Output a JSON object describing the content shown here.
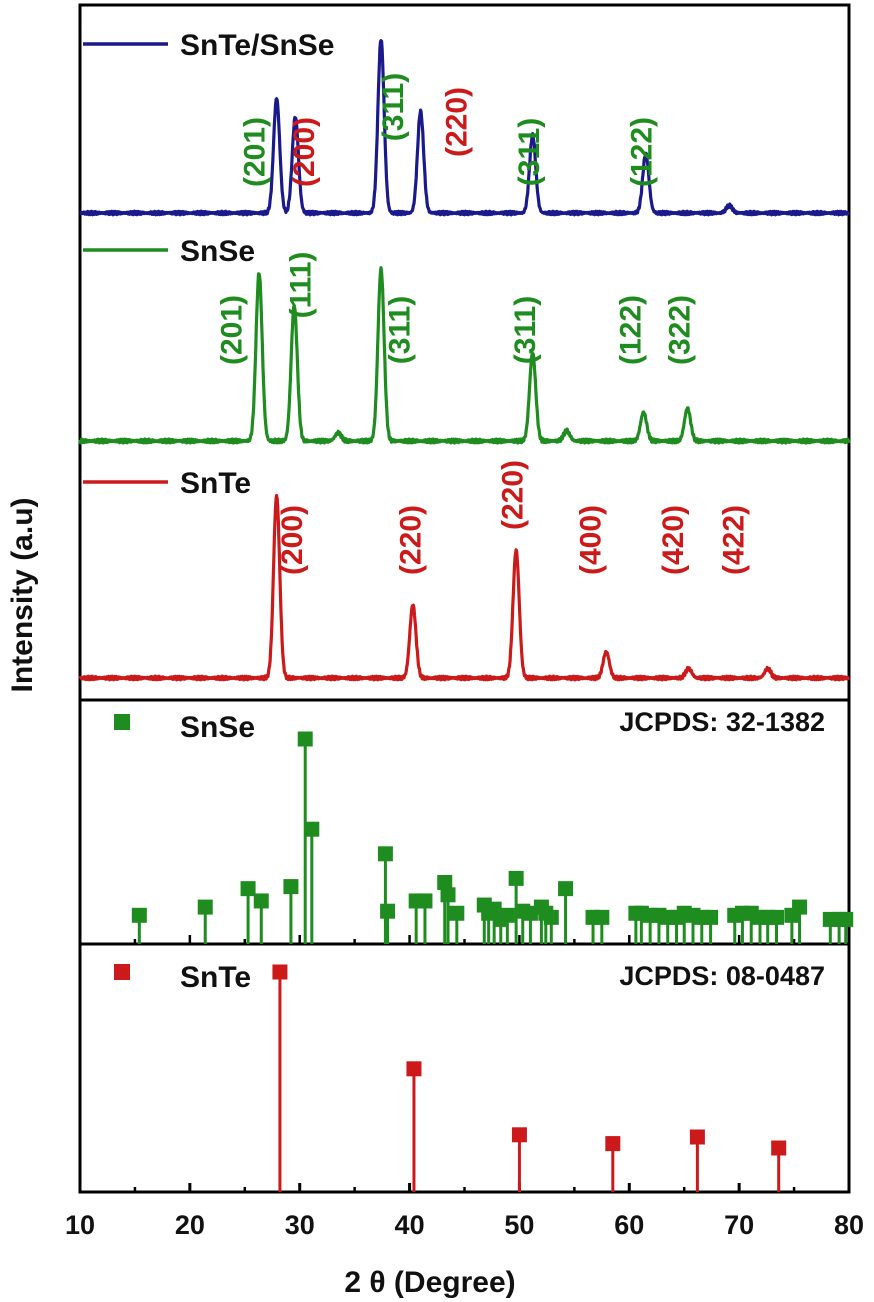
{
  "chart_data": {
    "type": "line",
    "xlabel": "2 θ (Degree)",
    "ylabel": "Intensity (a.u)",
    "xlim": [
      10,
      80
    ],
    "xticks": [
      "10",
      "20",
      "30",
      "40",
      "50",
      "60",
      "70",
      "80"
    ],
    "panels": [
      {
        "id": "patterns",
        "series": [
          {
            "name": "SnTe/SnSe",
            "color": "#1a1a8c",
            "peaks": [
              {
                "x": 27.9,
                "h": 0.62
              },
              {
                "x": 29.6,
                "h": 0.52
              },
              {
                "x": 37.4,
                "h": 0.94
              },
              {
                "x": 41.0,
                "h": 0.55
              },
              {
                "x": 51.2,
                "h": 0.42
              },
              {
                "x": 61.5,
                "h": 0.32
              },
              {
                "x": 69.1,
                "h": 0.04
              }
            ],
            "annotations": [
              {
                "text": "(201)",
                "x": 26.8,
                "color": "green"
              },
              {
                "text": "(200)",
                "x": 31.3,
                "color": "red"
              },
              {
                "text": "(311)",
                "x": 39.4,
                "color": "green"
              },
              {
                "text": "(220)",
                "x": 45.2,
                "color": "red"
              },
              {
                "text": "(311)",
                "x": 51.8,
                "color": "green"
              },
              {
                "text": "(122)",
                "x": 62.0,
                "color": "green"
              }
            ]
          },
          {
            "name": "SnSe",
            "color": "#1e8c1e",
            "peaks": [
              {
                "x": 26.3,
                "h": 0.82
              },
              {
                "x": 29.5,
                "h": 0.66
              },
              {
                "x": 33.5,
                "h": 0.04
              },
              {
                "x": 37.4,
                "h": 0.84
              },
              {
                "x": 51.2,
                "h": 0.43
              },
              {
                "x": 54.3,
                "h": 0.05
              },
              {
                "x": 61.3,
                "h": 0.14
              },
              {
                "x": 65.3,
                "h": 0.16
              }
            ],
            "annotations": [
              {
                "text": "(201)",
                "x": 24.7,
                "color": "green"
              },
              {
                "text": "(111)",
                "x": 31.0,
                "color": "green"
              },
              {
                "text": "(311)",
                "x": 40.0,
                "color": "green"
              },
              {
                "text": "(311)",
                "x": 51.4,
                "color": "green"
              },
              {
                "text": "(122)",
                "x": 61.0,
                "color": "green"
              },
              {
                "text": "(322)",
                "x": 65.5,
                "color": "green"
              }
            ]
          },
          {
            "name": "SnTe",
            "color": "#cc1a1a",
            "peaks": [
              {
                "x": 27.9,
                "h": 0.97
              },
              {
                "x": 40.3,
                "h": 0.39
              },
              {
                "x": 49.7,
                "h": 0.68
              },
              {
                "x": 57.9,
                "h": 0.14
              },
              {
                "x": 65.4,
                "h": 0.05
              },
              {
                "x": 72.6,
                "h": 0.05
              }
            ],
            "annotations": [
              {
                "text": "(200)",
                "x": 30.2,
                "color": "red"
              },
              {
                "text": "(220)",
                "x": 41.0,
                "color": "red"
              },
              {
                "text": "(220)",
                "x": 50.3,
                "color": "red"
              },
              {
                "text": "(400)",
                "x": 57.4,
                "color": "red"
              },
              {
                "text": "(420)",
                "x": 64.9,
                "color": "red"
              },
              {
                "text": "(422)",
                "x": 70.4,
                "color": "red"
              }
            ]
          }
        ]
      },
      {
        "id": "snse-reference",
        "type": "stem",
        "legend": "SnSe",
        "label": "JCPDS: 32-1382",
        "color": "#1e8c1e",
        "sticks": [
          {
            "x": 15.4,
            "h": 0.14
          },
          {
            "x": 21.4,
            "h": 0.18
          },
          {
            "x": 25.3,
            "h": 0.27
          },
          {
            "x": 26.5,
            "h": 0.21
          },
          {
            "x": 29.2,
            "h": 0.28
          },
          {
            "x": 30.5,
            "h": 1.0
          },
          {
            "x": 31.1,
            "h": 0.56
          },
          {
            "x": 37.8,
            "h": 0.44
          },
          {
            "x": 38.0,
            "h": 0.16
          },
          {
            "x": 40.6,
            "h": 0.21
          },
          {
            "x": 41.4,
            "h": 0.21
          },
          {
            "x": 43.2,
            "h": 0.3
          },
          {
            "x": 43.5,
            "h": 0.24
          },
          {
            "x": 44.3,
            "h": 0.15
          },
          {
            "x": 46.8,
            "h": 0.19
          },
          {
            "x": 47.2,
            "h": 0.15
          },
          {
            "x": 47.7,
            "h": 0.17
          },
          {
            "x": 48.3,
            "h": 0.12
          },
          {
            "x": 48.9,
            "h": 0.14
          },
          {
            "x": 49.7,
            "h": 0.32
          },
          {
            "x": 50.3,
            "h": 0.16
          },
          {
            "x": 51.0,
            "h": 0.15
          },
          {
            "x": 52.0,
            "h": 0.18
          },
          {
            "x": 52.4,
            "h": 0.15
          },
          {
            "x": 52.9,
            "h": 0.13
          },
          {
            "x": 54.2,
            "h": 0.27
          },
          {
            "x": 56.7,
            "h": 0.13
          },
          {
            "x": 57.5,
            "h": 0.13
          },
          {
            "x": 60.6,
            "h": 0.15
          },
          {
            "x": 61.1,
            "h": 0.15
          },
          {
            "x": 61.9,
            "h": 0.14
          },
          {
            "x": 62.7,
            "h": 0.14
          },
          {
            "x": 63.5,
            "h": 0.13
          },
          {
            "x": 64.3,
            "h": 0.13
          },
          {
            "x": 65.0,
            "h": 0.15
          },
          {
            "x": 65.8,
            "h": 0.14
          },
          {
            "x": 66.6,
            "h": 0.13
          },
          {
            "x": 67.4,
            "h": 0.13
          },
          {
            "x": 69.6,
            "h": 0.14
          },
          {
            "x": 70.3,
            "h": 0.15
          },
          {
            "x": 71.1,
            "h": 0.15
          },
          {
            "x": 71.9,
            "h": 0.13
          },
          {
            "x": 72.6,
            "h": 0.13
          },
          {
            "x": 73.4,
            "h": 0.13
          },
          {
            "x": 74.8,
            "h": 0.14
          },
          {
            "x": 75.5,
            "h": 0.18
          },
          {
            "x": 78.3,
            "h": 0.12
          },
          {
            "x": 79.1,
            "h": 0.12
          },
          {
            "x": 79.7,
            "h": 0.12
          }
        ]
      },
      {
        "id": "snte-reference",
        "type": "stem",
        "legend": "SnTe",
        "label": "JCPDS: 08-0487",
        "color": "#cc1a1a",
        "sticks": [
          {
            "x": 28.2,
            "h": 1.0
          },
          {
            "x": 40.4,
            "h": 0.56
          },
          {
            "x": 50.0,
            "h": 0.26
          },
          {
            "x": 58.5,
            "h": 0.22
          },
          {
            "x": 66.2,
            "h": 0.25
          },
          {
            "x": 73.6,
            "h": 0.2
          }
        ]
      }
    ]
  }
}
